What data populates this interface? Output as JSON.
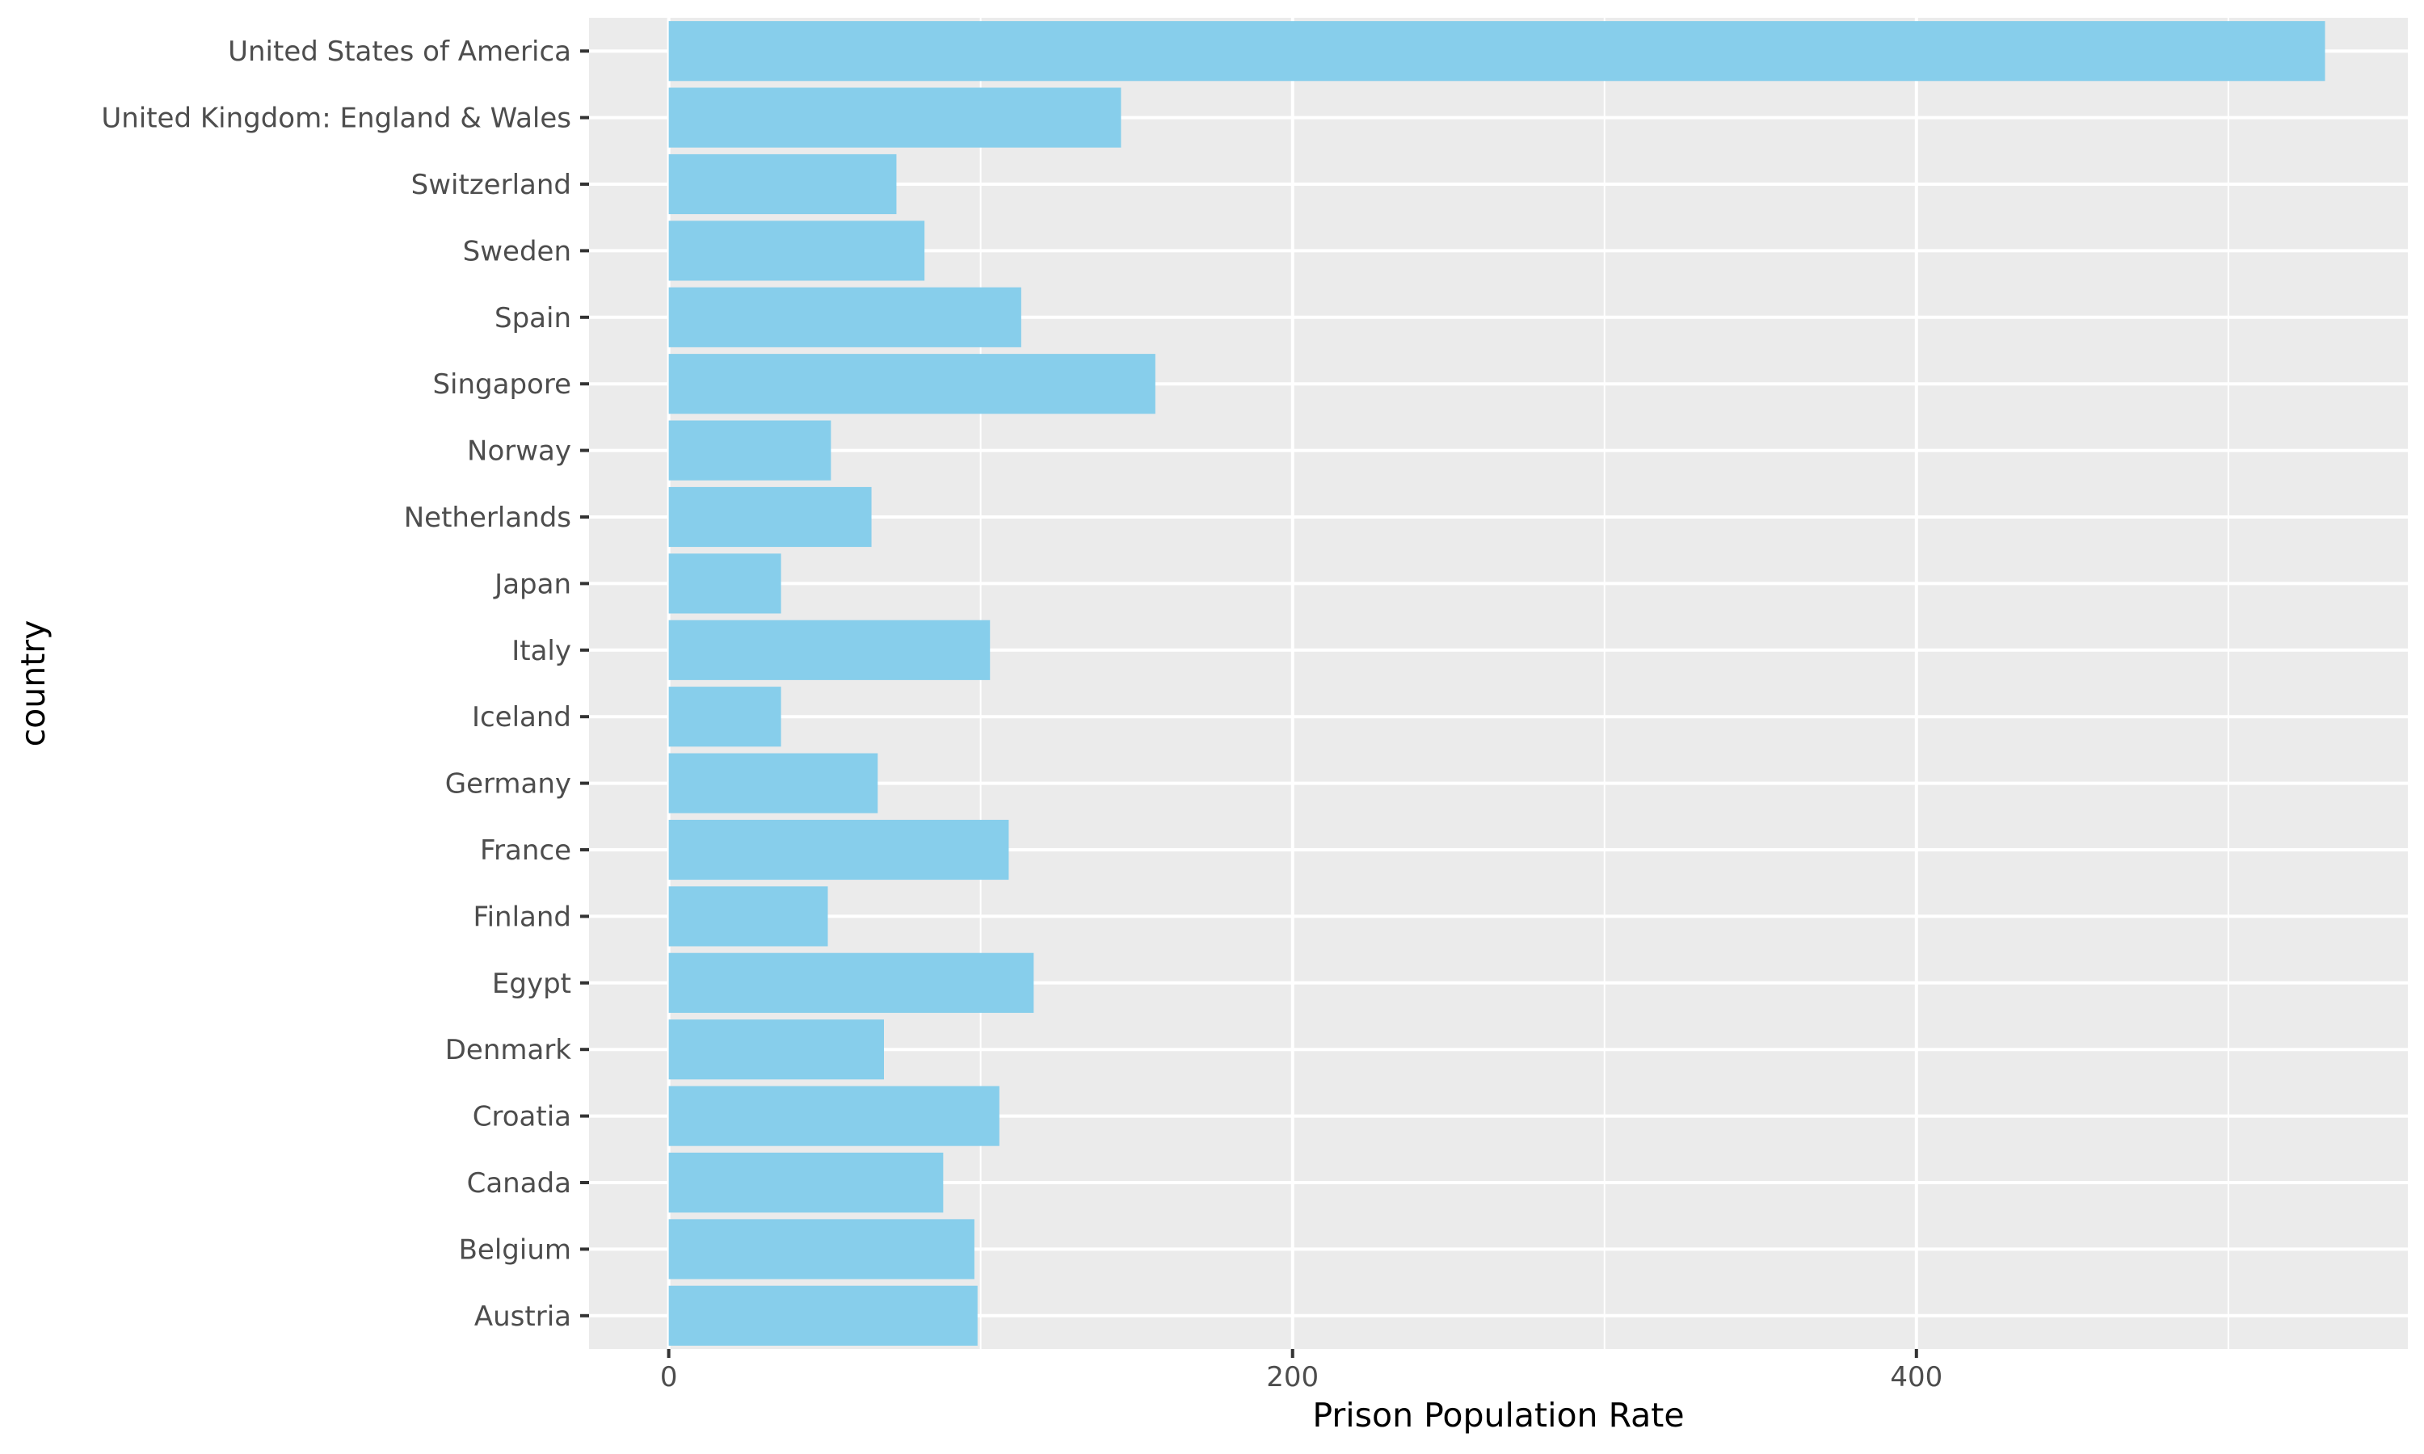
{
  "chart_data": {
    "type": "bar",
    "orientation": "horizontal",
    "title": "",
    "xlabel": "Prison Population Rate",
    "ylabel": "country",
    "categories": [
      "Austria",
      "Belgium",
      "Canada",
      "Croatia",
      "Denmark",
      "Egypt",
      "Finland",
      "France",
      "Germany",
      "Iceland",
      "Italy",
      "Japan",
      "Netherlands",
      "Norway",
      "Singapore",
      "Spain",
      "Sweden",
      "Switzerland",
      "United Kingdom: England & Wales",
      "United States of America"
    ],
    "values": [
      99,
      98,
      88,
      106,
      69,
      117,
      51,
      109,
      67,
      36,
      103,
      36,
      65,
      52,
      156,
      113,
      82,
      73,
      145,
      531
    ],
    "xlim": [
      -25.55,
      557.55
    ],
    "xticks": [
      0,
      200,
      400
    ],
    "grid": true,
    "legend": "none",
    "colors": {
      "bar": "#87CEEB",
      "panel": "#EBEBEB",
      "grid": "#FFFFFF",
      "tick_text": "#4D4D4D",
      "tick_mark": "#333333",
      "title_text": "#000000"
    }
  }
}
